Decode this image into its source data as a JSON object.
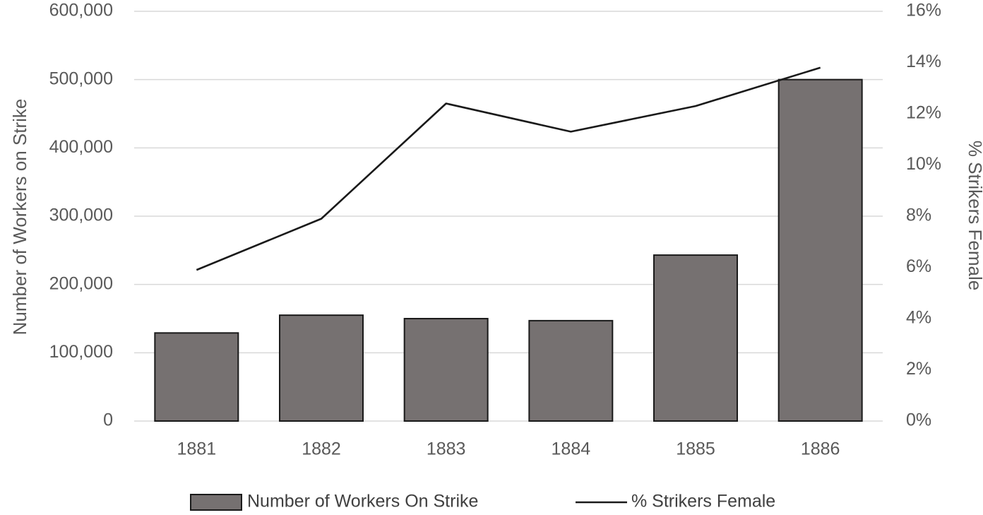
{
  "chart_data": {
    "type": "bar",
    "categories": [
      "1881",
      "1882",
      "1883",
      "1884",
      "1885",
      "1886"
    ],
    "series": [
      {
        "name": "Number of Workers On Strike",
        "type": "bar",
        "axis": "left",
        "values": [
          129000,
          155000,
          150000,
          147000,
          243000,
          500000
        ]
      },
      {
        "name": "% Strikers Female",
        "type": "line",
        "axis": "right",
        "values": [
          5.9,
          7.9,
          12.4,
          11.3,
          12.3,
          13.8
        ]
      }
    ],
    "ylabel": "Number of Workers on Strike",
    "y2label": "% Strikers Female",
    "ylim": [
      0,
      600000
    ],
    "y2lim": [
      0,
      16
    ],
    "yticks": [
      "0",
      "100,000",
      "200,000",
      "300,000",
      "400,000",
      "500,000",
      "600,000"
    ],
    "y2ticks": [
      "0%",
      "2%",
      "4%",
      "6%",
      "8%",
      "10%",
      "12%",
      "14%",
      "16%"
    ],
    "grid": true,
    "legend_position": "bottom",
    "colors": {
      "bar": "#767171",
      "line": "#1a1a1a",
      "grid": "#d9d9d9",
      "text": "#595959"
    }
  }
}
